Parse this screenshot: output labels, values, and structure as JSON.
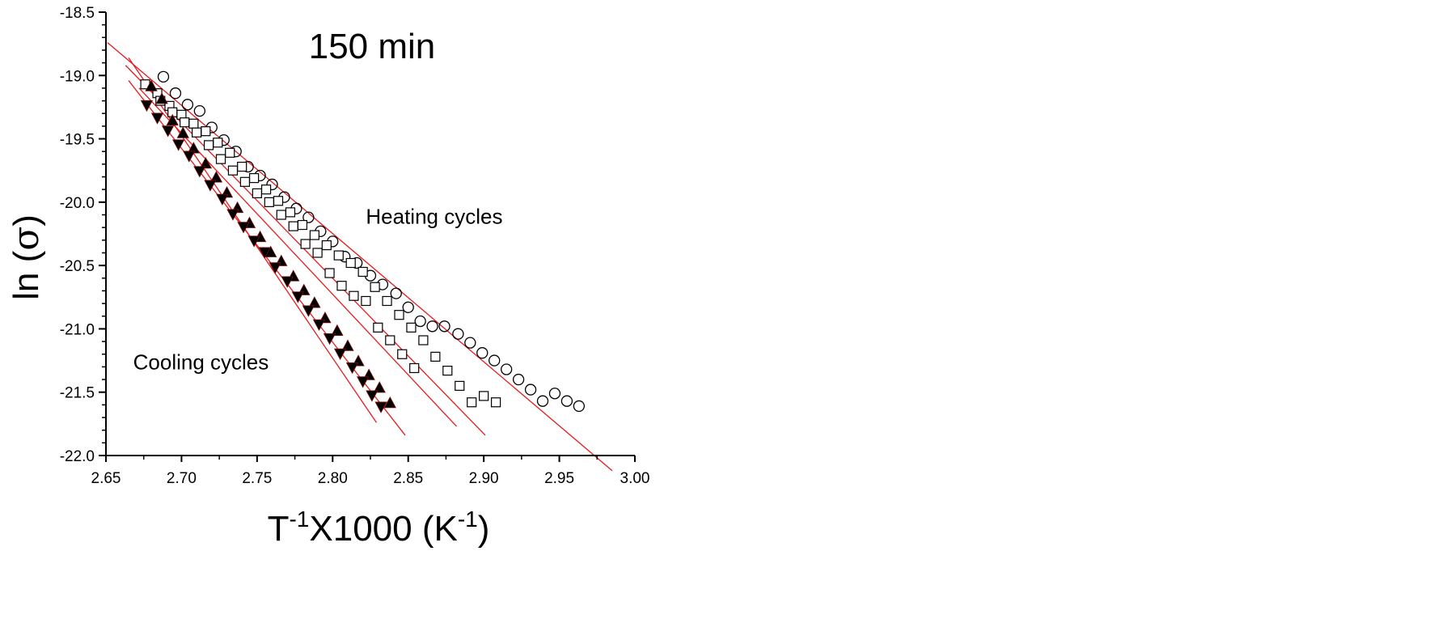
{
  "chart_data": {
    "type": "scatter",
    "title": "150 min",
    "xlabel": {
      "base1": "T",
      "sup1": "-1",
      "mid": "X1000 (K",
      "sup2": "-1",
      "end": ")"
    },
    "ylabel": {
      "prefix": "ln (",
      "symbol": "σ",
      "suffix": ")"
    },
    "xlim": [
      2.65,
      3.0
    ],
    "ylim": [
      -22.0,
      -18.5
    ],
    "x_ticks": [
      2.65,
      2.7,
      2.75,
      2.8,
      2.85,
      2.9,
      2.95,
      3.0
    ],
    "x_tick_labels": [
      "2.65",
      "2.70",
      "2.75",
      "2.80",
      "2.85",
      "2.90",
      "2.95",
      "3.00"
    ],
    "y_ticks": [
      -18.5,
      -19.0,
      -19.5,
      -20.0,
      -20.5,
      -21.0,
      -21.5,
      -22.0
    ],
    "y_tick_labels": [
      "-18.5",
      "-19.0",
      "-19.5",
      "-20.0",
      "-20.5",
      "-21.0",
      "-21.5",
      "-22.0"
    ],
    "grid": false,
    "annotations": [
      {
        "text": "Heating cycles",
        "x": 2.822,
        "y": -20.17
      },
      {
        "text": "Cooling cycles",
        "x": 2.668,
        "y": -21.32
      }
    ],
    "colors": {
      "fit_line": "#e8191c",
      "marker_fill": "#000000",
      "axis": "#000000"
    },
    "series": [
      {
        "marker": "open-circle",
        "points": [
          [
            2.688,
            -19.01
          ],
          [
            2.696,
            -19.14
          ],
          [
            2.704,
            -19.23
          ],
          [
            2.712,
            -19.28
          ],
          [
            2.72,
            -19.41
          ],
          [
            2.728,
            -19.51
          ],
          [
            2.736,
            -19.6
          ],
          [
            2.744,
            -19.72
          ],
          [
            2.752,
            -19.79
          ],
          [
            2.76,
            -19.86
          ],
          [
            2.768,
            -19.96
          ],
          [
            2.776,
            -20.05
          ],
          [
            2.784,
            -20.12
          ],
          [
            2.792,
            -20.23
          ],
          [
            2.8,
            -20.31
          ],
          [
            2.808,
            -20.43
          ],
          [
            2.816,
            -20.48
          ],
          [
            2.825,
            -20.58
          ],
          [
            2.833,
            -20.65
          ],
          [
            2.842,
            -20.72
          ],
          [
            2.85,
            -20.83
          ],
          [
            2.858,
            -20.94
          ],
          [
            2.866,
            -20.98
          ],
          [
            2.874,
            -20.98
          ],
          [
            2.883,
            -21.04
          ],
          [
            2.891,
            -21.11
          ],
          [
            2.899,
            -21.19
          ],
          [
            2.907,
            -21.25
          ],
          [
            2.915,
            -21.32
          ],
          [
            2.923,
            -21.4
          ],
          [
            2.931,
            -21.48
          ],
          [
            2.939,
            -21.57
          ],
          [
            2.947,
            -21.51
          ],
          [
            2.955,
            -21.57
          ],
          [
            2.963,
            -21.61
          ]
        ]
      },
      {
        "marker": "open-square",
        "points": [
          [
            2.676,
            -19.07
          ],
          [
            2.684,
            -19.14
          ],
          [
            2.692,
            -19.24
          ],
          [
            2.7,
            -19.31
          ],
          [
            2.708,
            -19.38
          ],
          [
            2.716,
            -19.44
          ],
          [
            2.724,
            -19.53
          ],
          [
            2.732,
            -19.61
          ],
          [
            2.74,
            -19.72
          ],
          [
            2.748,
            -19.81
          ],
          [
            2.756,
            -19.9
          ],
          [
            2.764,
            -19.99
          ],
          [
            2.772,
            -20.08
          ],
          [
            2.78,
            -20.18
          ],
          [
            2.788,
            -20.26
          ],
          [
            2.796,
            -20.34
          ],
          [
            2.804,
            -20.42
          ],
          [
            2.812,
            -20.48
          ],
          [
            2.82,
            -20.55
          ],
          [
            2.828,
            -20.67
          ],
          [
            2.836,
            -20.78
          ],
          [
            2.844,
            -20.89
          ],
          [
            2.852,
            -20.99
          ],
          [
            2.86,
            -21.09
          ],
          [
            2.868,
            -21.22
          ],
          [
            2.876,
            -21.33
          ],
          [
            2.884,
            -21.45
          ],
          [
            2.892,
            -21.58
          ],
          [
            2.9,
            -21.53
          ],
          [
            2.908,
            -21.58
          ],
          [
            2.686,
            -19.2
          ],
          [
            2.694,
            -19.29
          ],
          [
            2.702,
            -19.37
          ],
          [
            2.71,
            -19.45
          ],
          [
            2.718,
            -19.55
          ],
          [
            2.726,
            -19.66
          ],
          [
            2.734,
            -19.75
          ],
          [
            2.742,
            -19.84
          ],
          [
            2.75,
            -19.93
          ],
          [
            2.758,
            -20.0
          ],
          [
            2.766,
            -20.1
          ],
          [
            2.774,
            -20.19
          ],
          [
            2.782,
            -20.33
          ],
          [
            2.79,
            -20.4
          ],
          [
            2.798,
            -20.56
          ],
          [
            2.806,
            -20.66
          ],
          [
            2.814,
            -20.74
          ],
          [
            2.822,
            -20.78
          ],
          [
            2.83,
            -20.99
          ],
          [
            2.838,
            -21.09
          ],
          [
            2.846,
            -21.2
          ],
          [
            2.854,
            -21.31
          ]
        ]
      },
      {
        "marker": "filled-triangle-up",
        "points": [
          [
            2.68,
            -19.09
          ],
          [
            2.687,
            -19.19
          ],
          [
            2.694,
            -19.36
          ],
          [
            2.701,
            -19.46
          ],
          [
            2.708,
            -19.58
          ],
          [
            2.716,
            -19.7
          ],
          [
            2.723,
            -19.81
          ],
          [
            2.73,
            -19.93
          ],
          [
            2.737,
            -20.05
          ],
          [
            2.745,
            -20.17
          ],
          [
            2.752,
            -20.28
          ],
          [
            2.759,
            -20.4
          ],
          [
            2.766,
            -20.47
          ],
          [
            2.774,
            -20.59
          ],
          [
            2.781,
            -20.7
          ],
          [
            2.788,
            -20.8
          ],
          [
            2.795,
            -20.92
          ],
          [
            2.803,
            -21.02
          ],
          [
            2.81,
            -21.14
          ],
          [
            2.817,
            -21.26
          ],
          [
            2.824,
            -21.37
          ],
          [
            2.831,
            -21.47
          ],
          [
            2.838,
            -21.59
          ]
        ]
      },
      {
        "marker": "filled-triangle-down",
        "points": [
          [
            2.677,
            -19.23
          ],
          [
            2.684,
            -19.33
          ],
          [
            2.691,
            -19.43
          ],
          [
            2.698,
            -19.54
          ],
          [
            2.705,
            -19.63
          ],
          [
            2.712,
            -19.75
          ],
          [
            2.719,
            -19.86
          ],
          [
            2.727,
            -19.97
          ],
          [
            2.734,
            -20.09
          ],
          [
            2.741,
            -20.19
          ],
          [
            2.748,
            -20.3
          ],
          [
            2.755,
            -20.39
          ],
          [
            2.762,
            -20.51
          ],
          [
            2.77,
            -20.62
          ],
          [
            2.777,
            -20.74
          ],
          [
            2.784,
            -20.85
          ],
          [
            2.791,
            -20.96
          ],
          [
            2.798,
            -21.07
          ],
          [
            2.805,
            -21.19
          ],
          [
            2.813,
            -21.3
          ],
          [
            2.82,
            -21.41
          ],
          [
            2.826,
            -21.52
          ],
          [
            2.832,
            -21.61
          ]
        ]
      }
    ],
    "fit_lines": [
      {
        "x": [
          2.651,
          2.985
        ],
        "y": [
          -18.74,
          -22.12
        ]
      },
      {
        "x": [
          2.663,
          2.901
        ],
        "y": [
          -18.92,
          -21.84
        ]
      },
      {
        "x": [
          2.672,
          2.882
        ],
        "y": [
          -19.1,
          -21.77
        ]
      },
      {
        "x": [
          2.665,
          2.848
        ],
        "y": [
          -19.04,
          -21.84
        ]
      },
      {
        "x": [
          2.665,
          2.829
        ],
        "y": [
          -18.86,
          -21.74
        ]
      }
    ]
  }
}
